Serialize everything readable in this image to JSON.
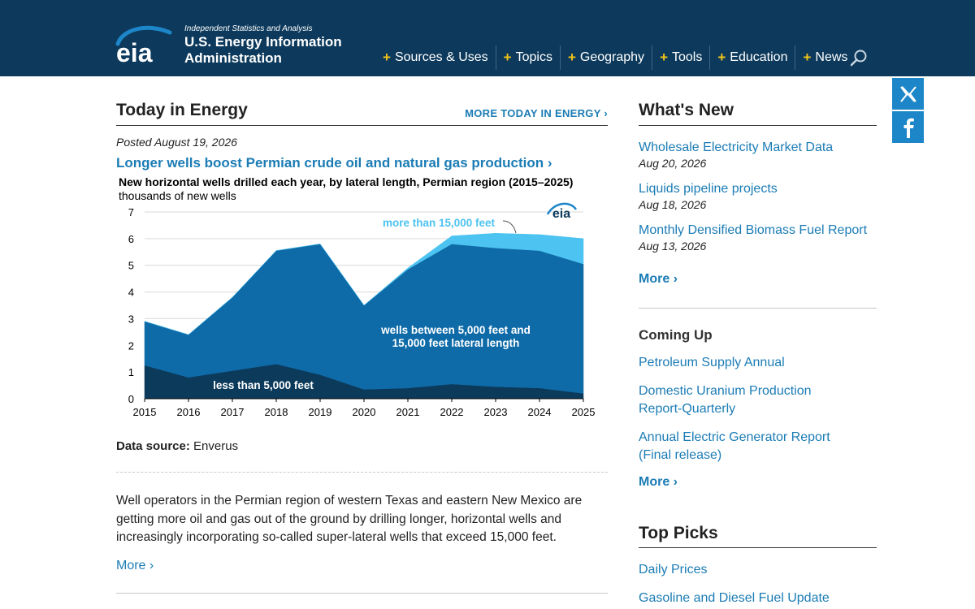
{
  "header": {
    "logo_text": "eia",
    "tagline": "Independent Statistics and Analysis",
    "org_name": "U.S. Energy Information Administration",
    "nav": [
      "Sources & Uses",
      "Topics",
      "Geography",
      "Tools",
      "Education",
      "News"
    ],
    "search_icon": "search-icon",
    "colors": {
      "bar": "#0d3a5c",
      "plus": "#f5c518"
    }
  },
  "social": {
    "x_icon": "x-logo-icon",
    "facebook_icon": "facebook-icon",
    "color": "#1d86c8"
  },
  "today": {
    "title": "Today in Energy",
    "more_label": "MORE TODAY IN ENERGY ›",
    "posted": "Posted August 19, 2026",
    "headline": "Longer wells boost Permian crude oil and natural gas production ›",
    "data_source_label": "Data source:",
    "data_source_value": "Enverus",
    "summary": "Well operators in the Permian region of western Texas and eastern New Mexico are getting more oil and gas out of the ground by drilling longer, horizontal wells and increasingly incorporating so-called super-lateral wells that exceed 15,000 feet.",
    "more_label_bottom": "More ›"
  },
  "chart_data": {
    "type": "area",
    "title": "New horizontal wells drilled each year, by lateral length, Permian region (2015–2025)",
    "ylabel": "thousands of new wells",
    "xlabel": "",
    "x": [
      2015,
      2016,
      2017,
      2018,
      2019,
      2020,
      2021,
      2022,
      2023,
      2024,
      2025
    ],
    "ylim": [
      0,
      7
    ],
    "yticks": [
      0,
      1,
      2,
      3,
      4,
      5,
      6,
      7
    ],
    "grid": true,
    "stacked": true,
    "watermark": "eia",
    "series": [
      {
        "name": "less than 5,000 feet",
        "color": "#0c3a5b",
        "values": [
          1.25,
          0.8,
          1.05,
          1.3,
          0.9,
          0.35,
          0.4,
          0.55,
          0.45,
          0.4,
          0.2
        ]
      },
      {
        "name": "wells between 5,000 feet and 15,000 feet lateral length",
        "color": "#0e6ba8",
        "values": [
          1.65,
          1.6,
          2.75,
          4.25,
          4.9,
          3.15,
          4.45,
          5.25,
          5.2,
          5.15,
          4.85
        ]
      },
      {
        "name": "more than 15,000 feet",
        "color": "#4cc3f0",
        "values": [
          0,
          0,
          0,
          0,
          0,
          0,
          0.05,
          0.3,
          0.55,
          0.6,
          0.95
        ]
      }
    ]
  },
  "whats_new": {
    "title": "What's New",
    "items": [
      {
        "label": "Wholesale Electricity Market Data",
        "date": "Aug 20, 2026"
      },
      {
        "label": "Liquids pipeline projects",
        "date": "Aug 18, 2026"
      },
      {
        "label": "Monthly Densified Biomass Fuel Report",
        "date": "Aug 13, 2026"
      }
    ],
    "more_label": "More ›"
  },
  "coming_up": {
    "title": "Coming Up",
    "items": [
      "Petroleum Supply Annual",
      "Domestic Uranium Production Report-Quarterly",
      "Annual Electric Generator Report (Final release)"
    ],
    "more_label": "More ›"
  },
  "top_picks": {
    "title": "Top Picks",
    "items": [
      "Daily Prices",
      "Gasoline and Diesel Fuel Update"
    ]
  }
}
